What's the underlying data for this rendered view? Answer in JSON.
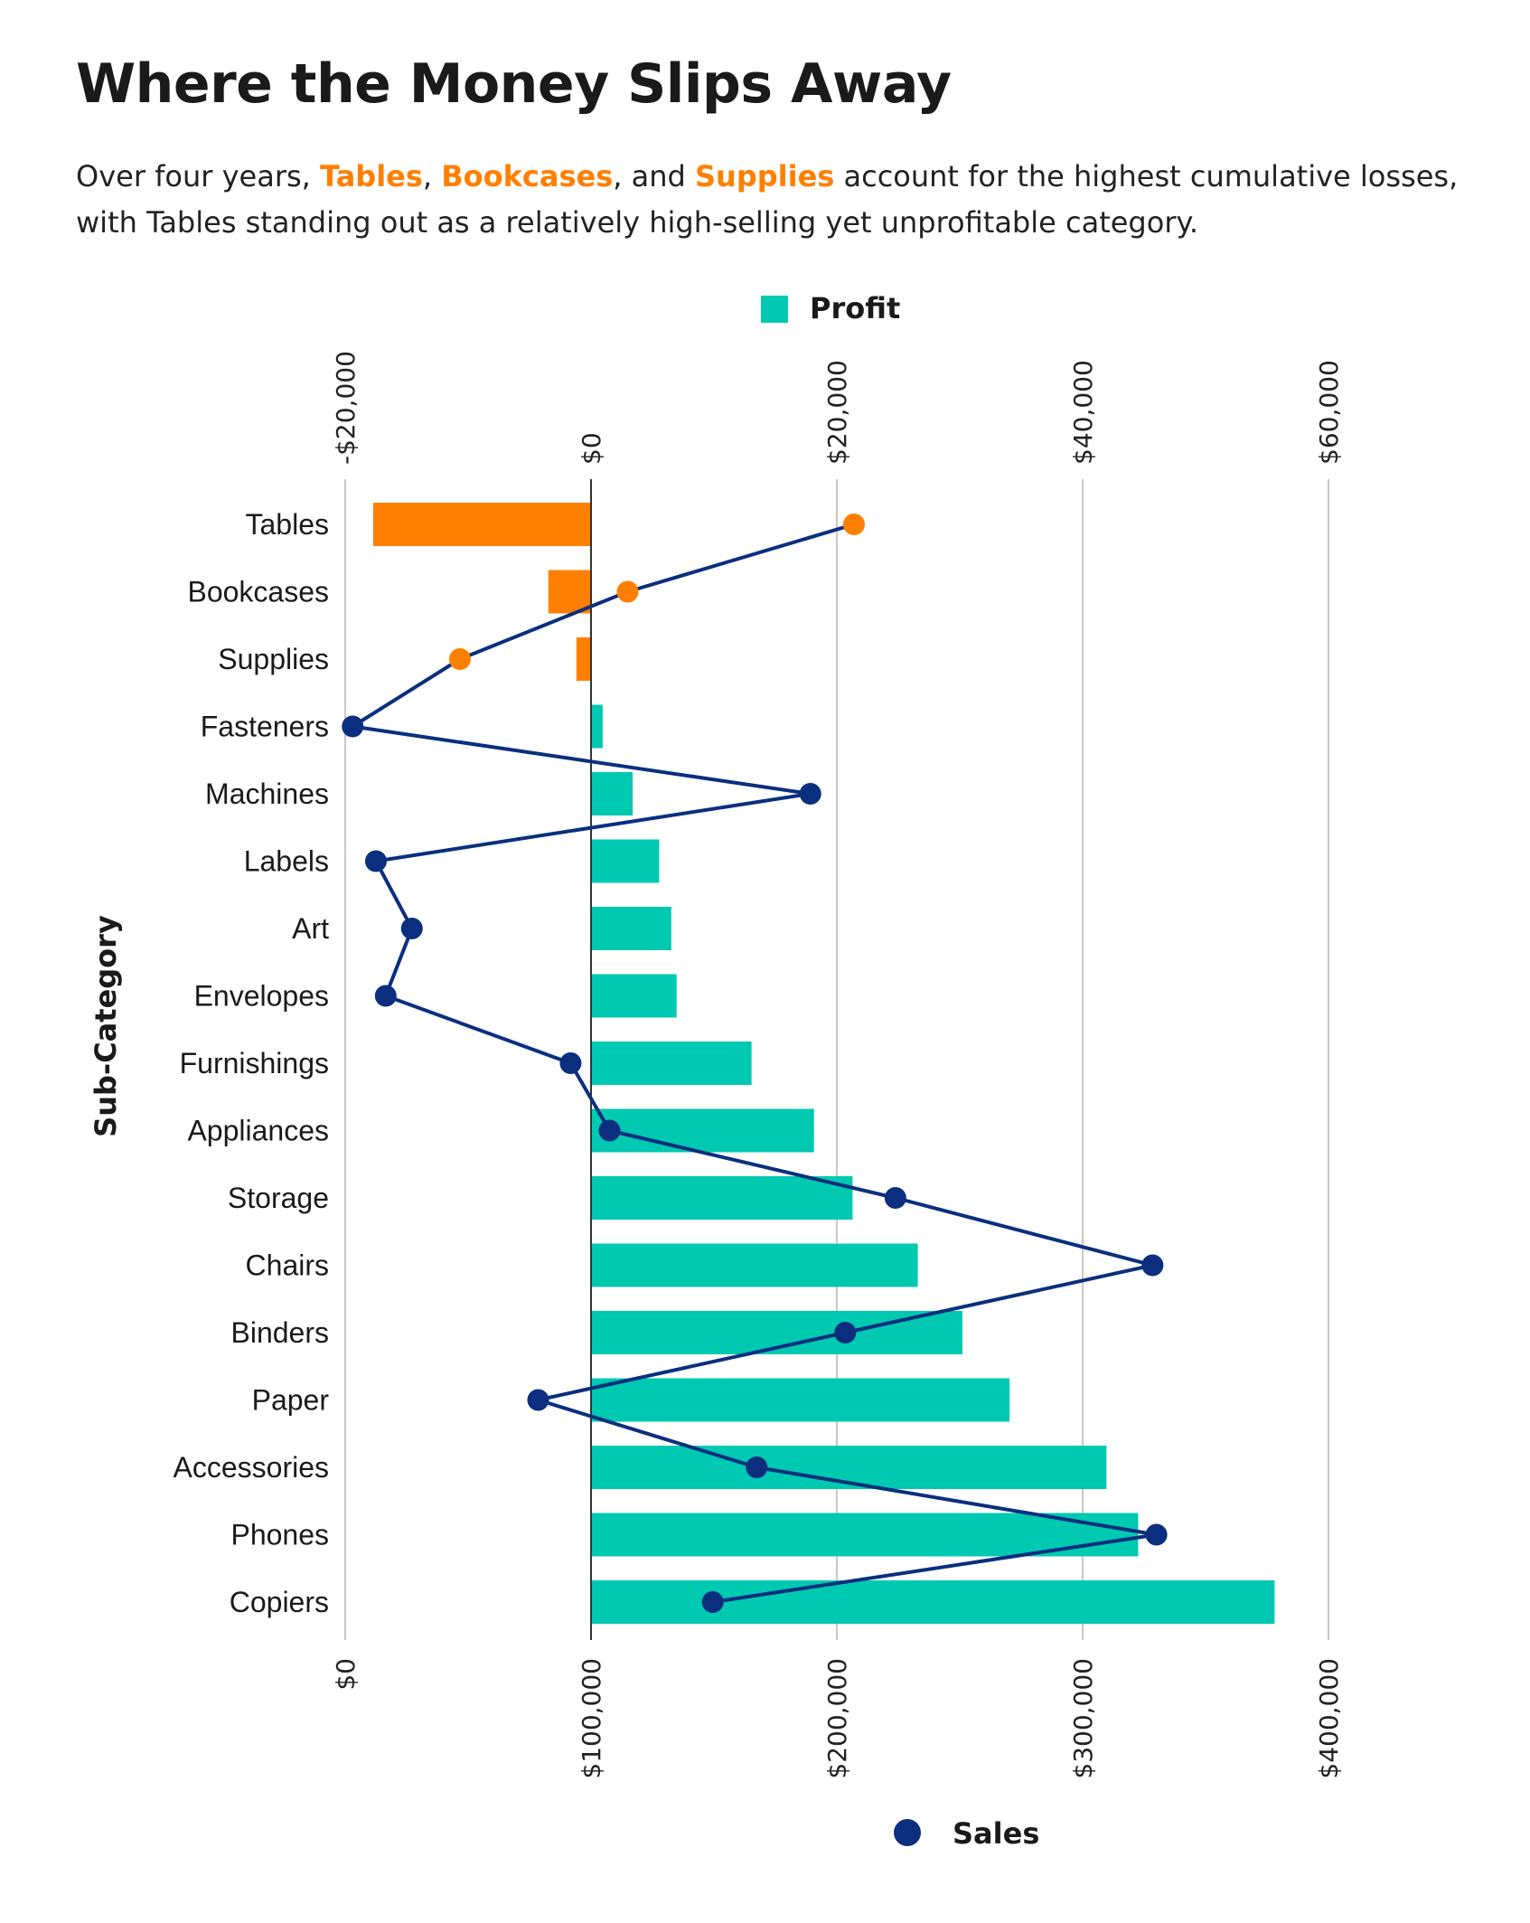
{
  "title": "Where the Money Slips Away",
  "subtitle": {
    "p1": "Over four years, ",
    "h1": "Tables",
    "p2": ", ",
    "h2": "Bookcases",
    "p3": ", and ",
    "h3": "Supplies",
    "p4": " account for the highest cumulative losses, with Tables standing out as a relatively high-selling yet unprofitable category."
  },
  "colors": {
    "profit": "#00c9b1",
    "loss": "#ff7f00",
    "sales": "#0b2f7e",
    "grid": "#c8c8c8",
    "zero": "#333333"
  },
  "chart_data": {
    "type": "bar",
    "orientation": "horizontal",
    "ylabel": "Sub-Category",
    "categories": [
      "Tables",
      "Bookcases",
      "Supplies",
      "Fasteners",
      "Machines",
      "Labels",
      "Art",
      "Envelopes",
      "Furnishings",
      "Appliances",
      "Storage",
      "Chairs",
      "Binders",
      "Paper",
      "Accessories",
      "Phones",
      "Copiers"
    ],
    "profit_axis": {
      "position": "top",
      "ticks": [
        -20000,
        0,
        20000,
        40000,
        60000
      ],
      "tick_labels": [
        "-$20,000",
        "$0",
        "$20,000",
        "$40,000",
        "$60,000"
      ],
      "range": [
        -20000,
        60000
      ]
    },
    "sales_axis": {
      "position": "bottom",
      "ticks": [
        0,
        100000,
        200000,
        300000,
        400000
      ],
      "tick_labels": [
        "$0",
        "$100,000",
        "$200,000",
        "$300,000",
        "$400,000"
      ],
      "range": [
        0,
        400000
      ]
    },
    "series": [
      {
        "name": "Profit",
        "kind": "bar",
        "values": [
          -17725,
          -3473,
          -1189,
          950,
          3385,
          5546,
          6528,
          6964,
          13059,
          18138,
          21279,
          26590,
          30222,
          34054,
          41937,
          44516,
          55618
        ]
      },
      {
        "name": "Sales",
        "kind": "line",
        "values": [
          206966,
          114880,
          46674,
          3024,
          189239,
          12486,
          27119,
          16476,
          91705,
          107532,
          223844,
          328449,
          203413,
          78479,
          167380,
          330007,
          149528
        ]
      }
    ],
    "legend": [
      {
        "label": "Profit",
        "position": "top"
      },
      {
        "label": "Sales",
        "position": "bottom"
      }
    ],
    "highlighted": [
      "Tables",
      "Bookcases",
      "Supplies"
    ],
    "grid": true
  }
}
